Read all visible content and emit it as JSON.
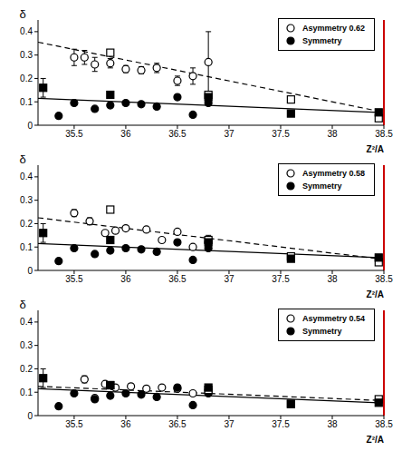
{
  "chart_data": [
    {
      "type": "scatter",
      "x_label": "Z²/A",
      "y_label": "δ",
      "xlim": [
        35.15,
        38.5
      ],
      "xticks": [
        35.5,
        36,
        36.5,
        37,
        37.5,
        38,
        38.5
      ],
      "ylim": [
        0,
        0.45
      ],
      "yticks": [
        0,
        0.1,
        0.2,
        0.3,
        0.4
      ],
      "legend": "upper right",
      "series": [
        {
          "name": "Asymmetry 0.62",
          "type": "scatter",
          "marker": "open_circle",
          "color": "#000000",
          "x": [
            35.5,
            35.6,
            35.7,
            35.85,
            36.0,
            36.15,
            36.3,
            36.5,
            36.65,
            36.8
          ],
          "values": [
            0.29,
            0.29,
            0.26,
            0.265,
            0.24,
            0.235,
            0.245,
            0.19,
            0.21,
            0.27
          ],
          "errors": [
            0.035,
            0.03,
            0.03,
            0.02,
            0.015,
            0.015,
            0.02,
            0.02,
            0.035,
            0.13
          ]
        },
        {
          "name": "Symmetry",
          "type": "scatter",
          "marker": "circle",
          "color": "#000000",
          "x": [
            35.35,
            35.5,
            35.7,
            35.85,
            36.0,
            36.15,
            36.3,
            36.5,
            36.65,
            36.8
          ],
          "values": [
            0.04,
            0.095,
            0.07,
            0.085,
            0.095,
            0.09,
            0.08,
            0.12,
            0.045,
            0.095
          ]
        },
        {
          "type": "scatter",
          "marker": "open_square",
          "color": "#000000",
          "x": [
            35.85,
            36.8,
            37.6,
            38.45
          ],
          "values": [
            0.31,
            0.13,
            0.11,
            0.03
          ]
        },
        {
          "type": "scatter",
          "marker": "square",
          "color": "#000000",
          "x": [
            35.2,
            35.85,
            36.8,
            37.6,
            38.45
          ],
          "values": [
            0.16,
            0.13,
            0.12,
            0.05,
            0.055
          ],
          "errors": [
            0.04,
            null,
            null,
            null,
            null
          ]
        },
        {
          "type": "line",
          "line_style": "dashed",
          "color": "#000000",
          "x": [
            35.15,
            38.45
          ],
          "values": [
            0.355,
            0.06
          ]
        },
        {
          "type": "line",
          "line_style": "solid",
          "color": "#000000",
          "x": [
            35.15,
            38.45
          ],
          "values": [
            0.115,
            0.055
          ]
        }
      ]
    },
    {
      "type": "scatter",
      "x_label": "Z²/A",
      "y_label": "δ",
      "xlim": [
        35.15,
        38.5
      ],
      "xticks": [
        35.5,
        36,
        36.5,
        37,
        37.5,
        38,
        38.5
      ],
      "ylim": [
        0,
        0.45
      ],
      "yticks": [
        0,
        0.1,
        0.2,
        0.3,
        0.4
      ],
      "legend": "upper right",
      "series": [
        {
          "name": "Asymmetry 0.58",
          "type": "scatter",
          "marker": "open_circle",
          "color": "#000000",
          "x": [
            35.5,
            35.65,
            35.8,
            35.9,
            36.0,
            36.2,
            36.35,
            36.5,
            36.65,
            36.8
          ],
          "values": [
            0.245,
            0.21,
            0.16,
            0.17,
            0.18,
            0.175,
            0.13,
            0.165,
            0.1,
            0.12
          ],
          "errors": [
            0.015,
            0.015,
            0.01,
            0.01,
            0.01,
            0.01,
            0.01,
            0.01,
            0.01,
            0.03
          ]
        },
        {
          "name": "Symmetry",
          "type": "scatter",
          "marker": "circle",
          "color": "#000000",
          "x": [
            35.35,
            35.5,
            35.7,
            35.85,
            36.0,
            36.15,
            36.3,
            36.5,
            36.65,
            36.8
          ],
          "values": [
            0.04,
            0.095,
            0.07,
            0.085,
            0.095,
            0.09,
            0.08,
            0.12,
            0.045,
            0.095
          ]
        },
        {
          "type": "scatter",
          "marker": "open_square",
          "color": "#000000",
          "x": [
            35.85,
            36.8,
            37.6,
            38.45
          ],
          "values": [
            0.26,
            0.13,
            0.06,
            0.035
          ]
        },
        {
          "type": "scatter",
          "marker": "square",
          "color": "#000000",
          "x": [
            35.2,
            35.85,
            36.8,
            37.6,
            38.45
          ],
          "values": [
            0.16,
            0.13,
            0.12,
            0.05,
            0.055
          ],
          "errors": [
            0.04,
            null,
            null,
            null,
            null
          ]
        },
        {
          "type": "line",
          "line_style": "dashed",
          "color": "#000000",
          "x": [
            35.15,
            38.45
          ],
          "values": [
            0.225,
            0.05
          ]
        },
        {
          "type": "line",
          "line_style": "solid",
          "color": "#000000",
          "x": [
            35.15,
            38.45
          ],
          "values": [
            0.115,
            0.055
          ]
        }
      ]
    },
    {
      "type": "scatter",
      "x_label": "Z²/A",
      "y_label": "δ",
      "xlim": [
        35.15,
        38.5
      ],
      "xticks": [
        35.5,
        36,
        36.5,
        37,
        37.5,
        38,
        38.5
      ],
      "ylim": [
        0,
        0.45
      ],
      "yticks": [
        0,
        0.1,
        0.2,
        0.3,
        0.4
      ],
      "legend": "upper right",
      "series": [
        {
          "name": "Asymmetry 0.54",
          "type": "scatter",
          "marker": "open_circle",
          "color": "#000000",
          "x": [
            35.6,
            35.7,
            35.8,
            35.9,
            36.05,
            36.2,
            36.35,
            36.5,
            36.65,
            36.8
          ],
          "values": [
            0.155,
            0.075,
            0.135,
            0.12,
            0.125,
            0.115,
            0.12,
            0.115,
            0.095,
            0.11
          ],
          "errors": [
            0.015,
            0.01,
            0.01,
            0.01,
            0.01,
            0.01,
            0.01,
            0.01,
            0.01,
            0.015
          ]
        },
        {
          "name": "Symmetry",
          "type": "scatter",
          "marker": "circle",
          "color": "#000000",
          "x": [
            35.35,
            35.5,
            35.7,
            35.85,
            36.0,
            36.15,
            36.3,
            36.5,
            36.65,
            36.8
          ],
          "values": [
            0.04,
            0.095,
            0.07,
            0.085,
            0.095,
            0.09,
            0.08,
            0.12,
            0.045,
            0.095
          ]
        },
        {
          "type": "scatter",
          "marker": "open_square",
          "color": "#000000",
          "x": [
            35.85,
            36.8,
            37.6,
            38.45
          ],
          "values": [
            0.13,
            0.11,
            0.05,
            0.07
          ]
        },
        {
          "type": "scatter",
          "marker": "square",
          "color": "#000000",
          "x": [
            35.2,
            35.85,
            36.8,
            37.6,
            38.45
          ],
          "values": [
            0.16,
            0.13,
            0.12,
            0.05,
            0.055
          ],
          "errors": [
            0.04,
            null,
            null,
            null,
            null
          ]
        },
        {
          "type": "line",
          "line_style": "dashed",
          "color": "#000000",
          "x": [
            35.15,
            38.45
          ],
          "values": [
            0.125,
            0.065
          ]
        },
        {
          "type": "line",
          "line_style": "solid",
          "color": "#000000",
          "x": [
            35.15,
            38.45
          ],
          "values": [
            0.115,
            0.055
          ]
        }
      ]
    }
  ]
}
